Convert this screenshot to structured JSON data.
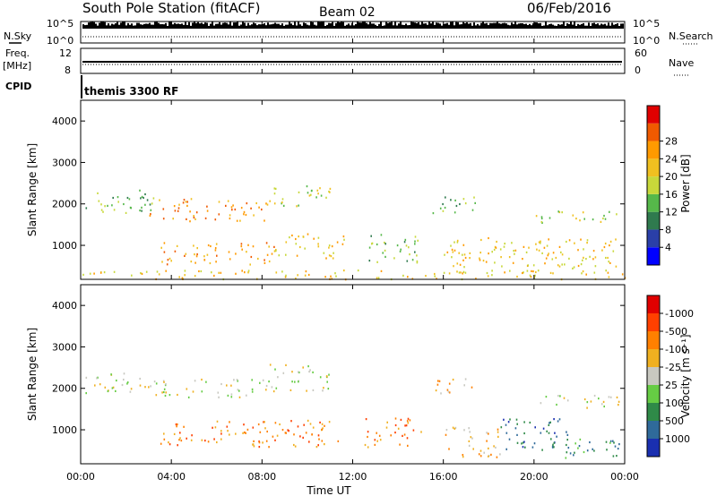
{
  "header": {
    "station": "South Pole Station (fitACF)",
    "beam": "Beam 02",
    "date": "06/Feb/2016"
  },
  "top_panels": {
    "nsky_label": "N.Sky",
    "nsky_exp_hi": "10^5",
    "nsky_exp_lo": "10^0",
    "nsearch_label": "N.Search",
    "nsearch_exp_hi": "10^5",
    "nsearch_exp_lo": "10^0",
    "freq_label": "Freq.",
    "freq_unit": "[MHz]",
    "freq_tick_hi": "12",
    "freq_tick_lo": "8",
    "nave_label": "Nave",
    "nave_tick_hi": "60",
    "nave_tick_lo": "0",
    "cpid_label": "CPID",
    "cpid_value": "themis 3300 RF"
  },
  "chart_data": [
    {
      "type": "heatmap",
      "title": "",
      "ylabel": "Slant Range [km]",
      "xlabel": "",
      "x_range_hours": [
        0,
        24
      ],
      "ylim": [
        180,
        4500
      ],
      "y_ticks": [
        "1000",
        "2000",
        "3000",
        "4000"
      ],
      "colorbar": {
        "label": "Power [dB]",
        "ticks": [
          "4",
          "8",
          "12",
          "16",
          "20",
          "24",
          "28"
        ],
        "colors": [
          "#0000ff",
          "#2a3fa8",
          "#2f7a4e",
          "#56b84a",
          "#c8d83a",
          "#f0c020",
          "#ff9a00",
          "#f05a00",
          "#e00000"
        ]
      },
      "echo_bands": [
        {
          "t0": 0.2,
          "t1": 3.2,
          "r0": 1750,
          "r1": 2350,
          "level": 3
        },
        {
          "t0": 3.0,
          "t1": 8.2,
          "r0": 1600,
          "r1": 2150,
          "level": 6
        },
        {
          "t0": 8.2,
          "t1": 11.0,
          "r0": 1950,
          "r1": 2500,
          "level": 4
        },
        {
          "t0": 3.5,
          "t1": 8.6,
          "r0": 550,
          "r1": 1100,
          "level": 6
        },
        {
          "t0": 8.5,
          "t1": 11.6,
          "r0": 700,
          "r1": 1300,
          "level": 5
        },
        {
          "t0": 12.5,
          "t1": 15.0,
          "r0": 600,
          "r1": 1300,
          "level": 3
        },
        {
          "t0": 15.5,
          "t1": 17.5,
          "r0": 1800,
          "r1": 2250,
          "level": 3
        },
        {
          "t0": 16.0,
          "t1": 23.8,
          "r0": 350,
          "r1": 1200,
          "level": 5
        },
        {
          "t0": 20.0,
          "t1": 23.8,
          "r0": 1550,
          "r1": 1850,
          "level": 4
        },
        {
          "t0": 0.0,
          "t1": 24.0,
          "r0": 200,
          "r1": 420,
          "level": 5
        }
      ]
    },
    {
      "type": "heatmap",
      "title": "",
      "ylabel": "Slant Range [km]",
      "xlabel": "Time UT",
      "x_range_hours": [
        0,
        24
      ],
      "x_ticks": [
        "00:00",
        "04:00",
        "08:00",
        "12:00",
        "16:00",
        "20:00",
        "00:00"
      ],
      "ylim": [
        180,
        4500
      ],
      "y_ticks": [
        "1000",
        "2000",
        "3000",
        "4000"
      ],
      "colorbar": {
        "label": "Velocity [m s⁻¹]",
        "ticks": [
          "1000",
          "500",
          "100",
          "25",
          "-25",
          "-100",
          "-500",
          "-1000"
        ],
        "colors": [
          "#1a2fb0",
          "#2f6a9a",
          "#2f8a48",
          "#66cc44",
          "#c8c8c0",
          "#f0b020",
          "#ff8000",
          "#ff4000",
          "#e00000"
        ]
      },
      "echo_bands": [
        {
          "t0": 0.2,
          "t1": 3.2,
          "r0": 1900,
          "r1": 2400,
          "level": 4
        },
        {
          "t0": 3.0,
          "t1": 8.2,
          "r0": 1800,
          "r1": 2250,
          "level": 4
        },
        {
          "t0": 8.2,
          "t1": 11.0,
          "r0": 1950,
          "r1": 2600,
          "level": 4
        },
        {
          "t0": 3.5,
          "t1": 11.5,
          "r0": 600,
          "r1": 1250,
          "level": 6
        },
        {
          "t0": 12.5,
          "t1": 15.0,
          "r0": 600,
          "r1": 1300,
          "level": 6
        },
        {
          "t0": 15.5,
          "t1": 17.5,
          "r0": 1900,
          "r1": 2250,
          "level": 5
        },
        {
          "t0": 16.0,
          "t1": 18.5,
          "r0": 350,
          "r1": 1100,
          "level": 5
        },
        {
          "t0": 18.5,
          "t1": 21.5,
          "r0": 500,
          "r1": 1300,
          "level": 1
        },
        {
          "t0": 20.0,
          "t1": 23.8,
          "r0": 1550,
          "r1": 1850,
          "level": 4
        },
        {
          "t0": 20.5,
          "t1": 23.8,
          "r0": 300,
          "r1": 800,
          "level": 2
        }
      ]
    }
  ]
}
